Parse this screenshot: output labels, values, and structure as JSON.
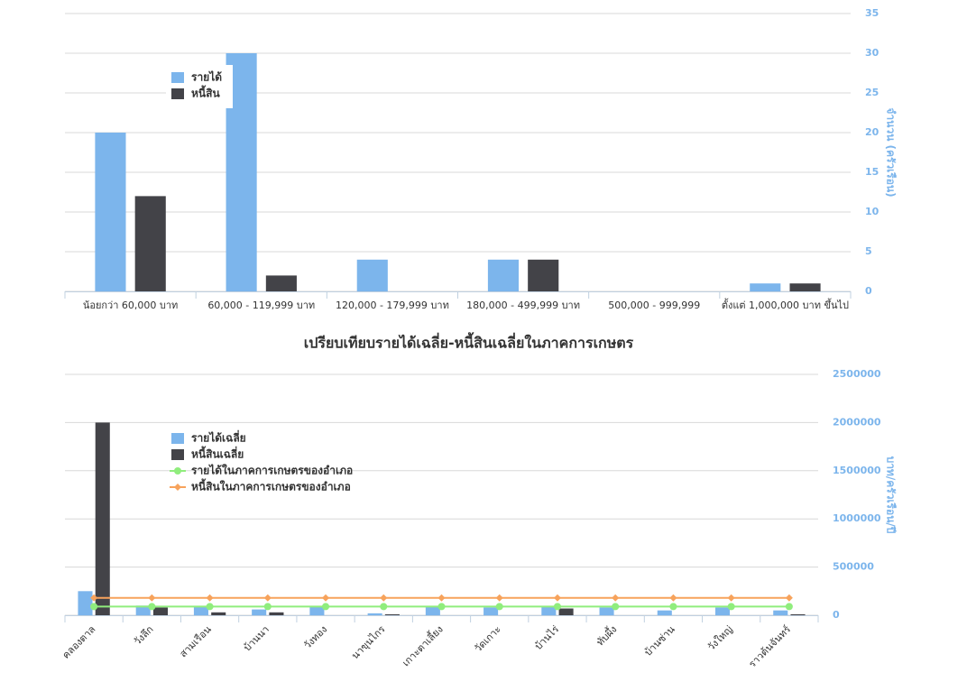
{
  "chart_data": [
    {
      "type": "bar",
      "y_label": "จำนวน (ครัวเรือน)",
      "categories": [
        "น้อยกว่า 60,000 บาท",
        "60,000 - 119,999 บาท",
        "120,000 - 179,999 บาท",
        "180,000 - 499,999 บาท",
        "500,000 - 999,999",
        "ตั้งแต่ 1,000,000 บาท ขึ้นไป"
      ],
      "series": [
        {
          "name": "รายได้",
          "color": "#7cb5ec",
          "values": [
            20,
            30,
            4,
            4,
            0,
            1
          ]
        },
        {
          "name": "หนี้สิน",
          "color": "#434348",
          "values": [
            12,
            2,
            0,
            4,
            0,
            1
          ]
        }
      ],
      "ylim": [
        0,
        35
      ],
      "yticks": [
        0,
        5,
        10,
        15,
        20,
        25,
        30,
        35
      ],
      "grid": true,
      "y_axis_side": "right",
      "legend": "top-left"
    },
    {
      "type": "bar",
      "title": "เปรียบเทียบรายได้เฉลี่ย-หนี้สินเฉลี่ยในภาคการเกษตร",
      "y_label": "บาท/ครัวเรือน/ปี",
      "categories": [
        "คลองตาล",
        "วังลึก",
        "สามเรือน",
        "บ้านนา",
        "วังทอง",
        "นาขุนไกร",
        "เกาะตาเลี้ยง",
        "วัดเกาะ",
        "บ้านไร่",
        "ทับผึ้ง",
        "บ้านซ่าน",
        "วังใหญ่",
        "ราวต้นจันทร์"
      ],
      "series": [
        {
          "name": "รายได้เฉลี่ย",
          "color": "#7cb5ec",
          "values": [
            250000,
            100000,
            90000,
            60000,
            90000,
            20000,
            90000,
            80000,
            90000,
            80000,
            50000,
            80000,
            50000
          ]
        },
        {
          "name": "หนี้สินเฉลี่ย",
          "color": "#434348",
          "values": [
            2000000,
            80000,
            30000,
            30000,
            0,
            10000,
            0,
            0,
            70000,
            0,
            0,
            0,
            10000
          ]
        },
        {
          "name": "รายได้ในภาคการเกษตรของอำเภอ",
          "color": "#90ed7d",
          "type": "line",
          "marker": "circle",
          "values": [
            90000,
            90000,
            90000,
            90000,
            90000,
            90000,
            90000,
            90000,
            90000,
            90000,
            90000,
            90000,
            90000
          ]
        },
        {
          "name": "หนี้สินในภาคการเกษตรของอำเภอ",
          "color": "#f7a35c",
          "type": "line",
          "marker": "diamond",
          "values": [
            180000,
            180000,
            180000,
            180000,
            180000,
            180000,
            180000,
            180000,
            180000,
            180000,
            180000,
            180000,
            180000
          ]
        }
      ],
      "ylim": [
        0,
        2500000
      ],
      "yticks": [
        0,
        500000,
        1000000,
        1500000,
        2000000,
        2500000
      ],
      "grid": true,
      "y_axis_side": "right",
      "legend": "top-left",
      "x_labels_rotated": true
    }
  ]
}
